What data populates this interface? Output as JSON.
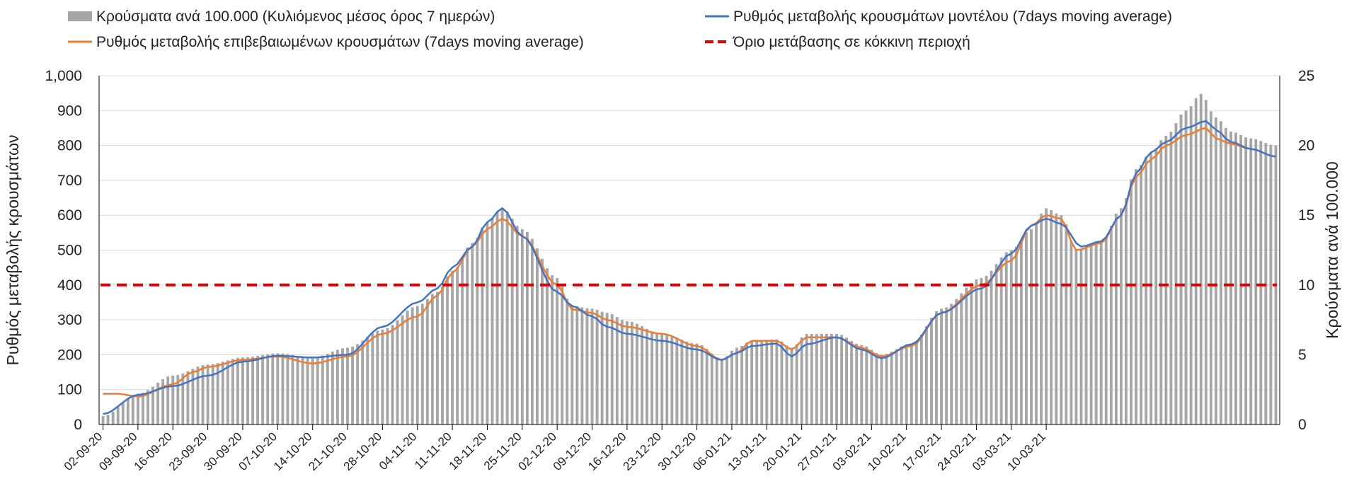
{
  "chart_data": {
    "type": "bar+line",
    "legend": {
      "placement": "top",
      "items": [
        {
          "key": "bars",
          "label": "Κρούσματα ανά 100.000 (Κυλιόμενος μέσος όρος 7 ημερών)",
          "color": "#a6a6a6"
        },
        {
          "key": "model",
          "label": "Ρυθμός μεταβολής κρουσμάτων μοντέλου (7days moving average)",
          "color": "#4472c4"
        },
        {
          "key": "confirmed",
          "label": "Ρυθμός μεταβολής επιβεβαιωμένων κρουσμάτων (7days moving average)",
          "color": "#ed7d31"
        },
        {
          "key": "threshold",
          "label": "Όριο μετάβασης σε κόκκινη περιοχή",
          "color": "#e00000"
        }
      ]
    },
    "ylabel_left": "Ρυθμός μεταβολής κρουσμάτων",
    "ylabel_right": "Κρούσματα ανά 100.000",
    "yleft": {
      "min": 0,
      "max": 1000,
      "step": 100,
      "labels": [
        "0",
        "100",
        "200",
        "300",
        "400",
        "500",
        "600",
        "700",
        "800",
        "900",
        "1,000"
      ]
    },
    "yright": {
      "min": 0,
      "max": 25,
      "step": 5,
      "labels": [
        "0",
        "5",
        "10",
        "15",
        "20",
        "25"
      ]
    },
    "grid": true,
    "x_tick_labels": [
      "02-09-20",
      "09-09-20",
      "16-09-20",
      "23-09-20",
      "30-09-20",
      "07-10-20",
      "14-10-20",
      "21-10-20",
      "28-10-20",
      "04-11-20",
      "11-11-20",
      "18-11-20",
      "25-11-20",
      "02-12-20",
      "09-12-20",
      "16-12-20",
      "23-12-20",
      "30-12-20",
      "06-01-21",
      "13-01-21",
      "20-01-21",
      "27-01-21",
      "03-02-21",
      "10-02-21",
      "17-02-21",
      "24-02-21",
      "03-03-21",
      "10-03-21"
    ],
    "threshold": 400,
    "anchors": {
      "model": [
        [
          0,
          30
        ],
        [
          7,
          85
        ],
        [
          14,
          110
        ],
        [
          21,
          140
        ],
        [
          28,
          180
        ],
        [
          35,
          197
        ],
        [
          42,
          192
        ],
        [
          49,
          200
        ],
        [
          56,
          280
        ],
        [
          63,
          350
        ],
        [
          67,
          390
        ],
        [
          70,
          450
        ],
        [
          74,
          510
        ],
        [
          77,
          580
        ],
        [
          80,
          620
        ],
        [
          84,
          540
        ],
        [
          91,
          380
        ],
        [
          94,
          340
        ],
        [
          98,
          310
        ],
        [
          101,
          280
        ],
        [
          105,
          260
        ],
        [
          112,
          240
        ],
        [
          119,
          215
        ],
        [
          124,
          185
        ],
        [
          127,
          205
        ],
        [
          130,
          225
        ],
        [
          135,
          232
        ],
        [
          138,
          195
        ],
        [
          141,
          230
        ],
        [
          147,
          250
        ],
        [
          152,
          215
        ],
        [
          156,
          190
        ],
        [
          162,
          230
        ],
        [
          168,
          320
        ],
        [
          176,
          390
        ],
        [
          182,
          490
        ],
        [
          186,
          570
        ],
        [
          189,
          590
        ],
        [
          192,
          575
        ],
        [
          196,
          510
        ],
        [
          200,
          525
        ],
        [
          204,
          600
        ],
        [
          207,
          720
        ],
        [
          210,
          780
        ],
        [
          213,
          810
        ],
        [
          217,
          850
        ],
        [
          221,
          870
        ],
        [
          223,
          845
        ],
        [
          226,
          810
        ],
        [
          230,
          790
        ],
        [
          235,
          768
        ]
      ],
      "confirmed": [
        [
          0,
          88
        ],
        [
          3,
          88
        ],
        [
          7,
          80
        ],
        [
          14,
          115
        ],
        [
          18,
          150
        ],
        [
          21,
          165
        ],
        [
          28,
          185
        ],
        [
          35,
          195
        ],
        [
          42,
          175
        ],
        [
          49,
          195
        ],
        [
          56,
          260
        ],
        [
          63,
          310
        ],
        [
          67,
          370
        ],
        [
          70,
          435
        ],
        [
          74,
          510
        ],
        [
          77,
          560
        ],
        [
          80,
          590
        ],
        [
          84,
          540
        ],
        [
          91,
          400
        ],
        [
          94,
          330
        ],
        [
          98,
          320
        ],
        [
          101,
          300
        ],
        [
          105,
          280
        ],
        [
          112,
          260
        ],
        [
          119,
          225
        ],
        [
          124,
          185
        ],
        [
          127,
          205
        ],
        [
          130,
          240
        ],
        [
          135,
          240
        ],
        [
          138,
          215
        ],
        [
          141,
          250
        ],
        [
          147,
          250
        ],
        [
          152,
          220
        ],
        [
          156,
          195
        ],
        [
          162,
          225
        ],
        [
          168,
          320
        ],
        [
          176,
          400
        ],
        [
          182,
          470
        ],
        [
          186,
          570
        ],
        [
          189,
          600
        ],
        [
          192,
          590
        ],
        [
          195,
          500
        ],
        [
          200,
          520
        ],
        [
          204,
          600
        ],
        [
          207,
          710
        ],
        [
          210,
          760
        ],
        [
          213,
          800
        ],
        [
          217,
          830
        ],
        [
          221,
          850
        ],
        [
          223,
          820
        ],
        [
          226,
          805
        ],
        [
          230,
          790
        ],
        [
          235,
          768
        ]
      ],
      "bars": [
        [
          0,
          0.6
        ],
        [
          7,
          2.2
        ],
        [
          14,
          3.5
        ],
        [
          21,
          4.3
        ],
        [
          28,
          4.8
        ],
        [
          35,
          5.1
        ],
        [
          42,
          4.8
        ],
        [
          49,
          5.5
        ],
        [
          56,
          6.8
        ],
        [
          63,
          8.5
        ],
        [
          67,
          9.5
        ],
        [
          70,
          11.0
        ],
        [
          74,
          13.0
        ],
        [
          77,
          14.5
        ],
        [
          80,
          15.5
        ],
        [
          84,
          14.0
        ],
        [
          91,
          10.5
        ],
        [
          94,
          8.5
        ],
        [
          98,
          8.3
        ],
        [
          101,
          8.0
        ],
        [
          105,
          7.4
        ],
        [
          112,
          6.5
        ],
        [
          119,
          5.8
        ],
        [
          124,
          4.7
        ],
        [
          127,
          5.5
        ],
        [
          130,
          6.0
        ],
        [
          135,
          6.1
        ],
        [
          138,
          5.5
        ],
        [
          141,
          6.5
        ],
        [
          147,
          6.5
        ],
        [
          152,
          5.7
        ],
        [
          156,
          5.0
        ],
        [
          162,
          5.8
        ],
        [
          168,
          8.3
        ],
        [
          176,
          10.5
        ],
        [
          182,
          12.5
        ],
        [
          186,
          14.0
        ],
        [
          189,
          15.5
        ],
        [
          192,
          15.0
        ],
        [
          195,
          12.5
        ],
        [
          200,
          13.0
        ],
        [
          204,
          15.5
        ],
        [
          207,
          18.3
        ],
        [
          210,
          19.5
        ],
        [
          213,
          20.7
        ],
        [
          217,
          22.5
        ],
        [
          220,
          23.7
        ],
        [
          223,
          22.0
        ],
        [
          226,
          21.0
        ],
        [
          230,
          20.5
        ],
        [
          235,
          20.0
        ]
      ]
    }
  }
}
